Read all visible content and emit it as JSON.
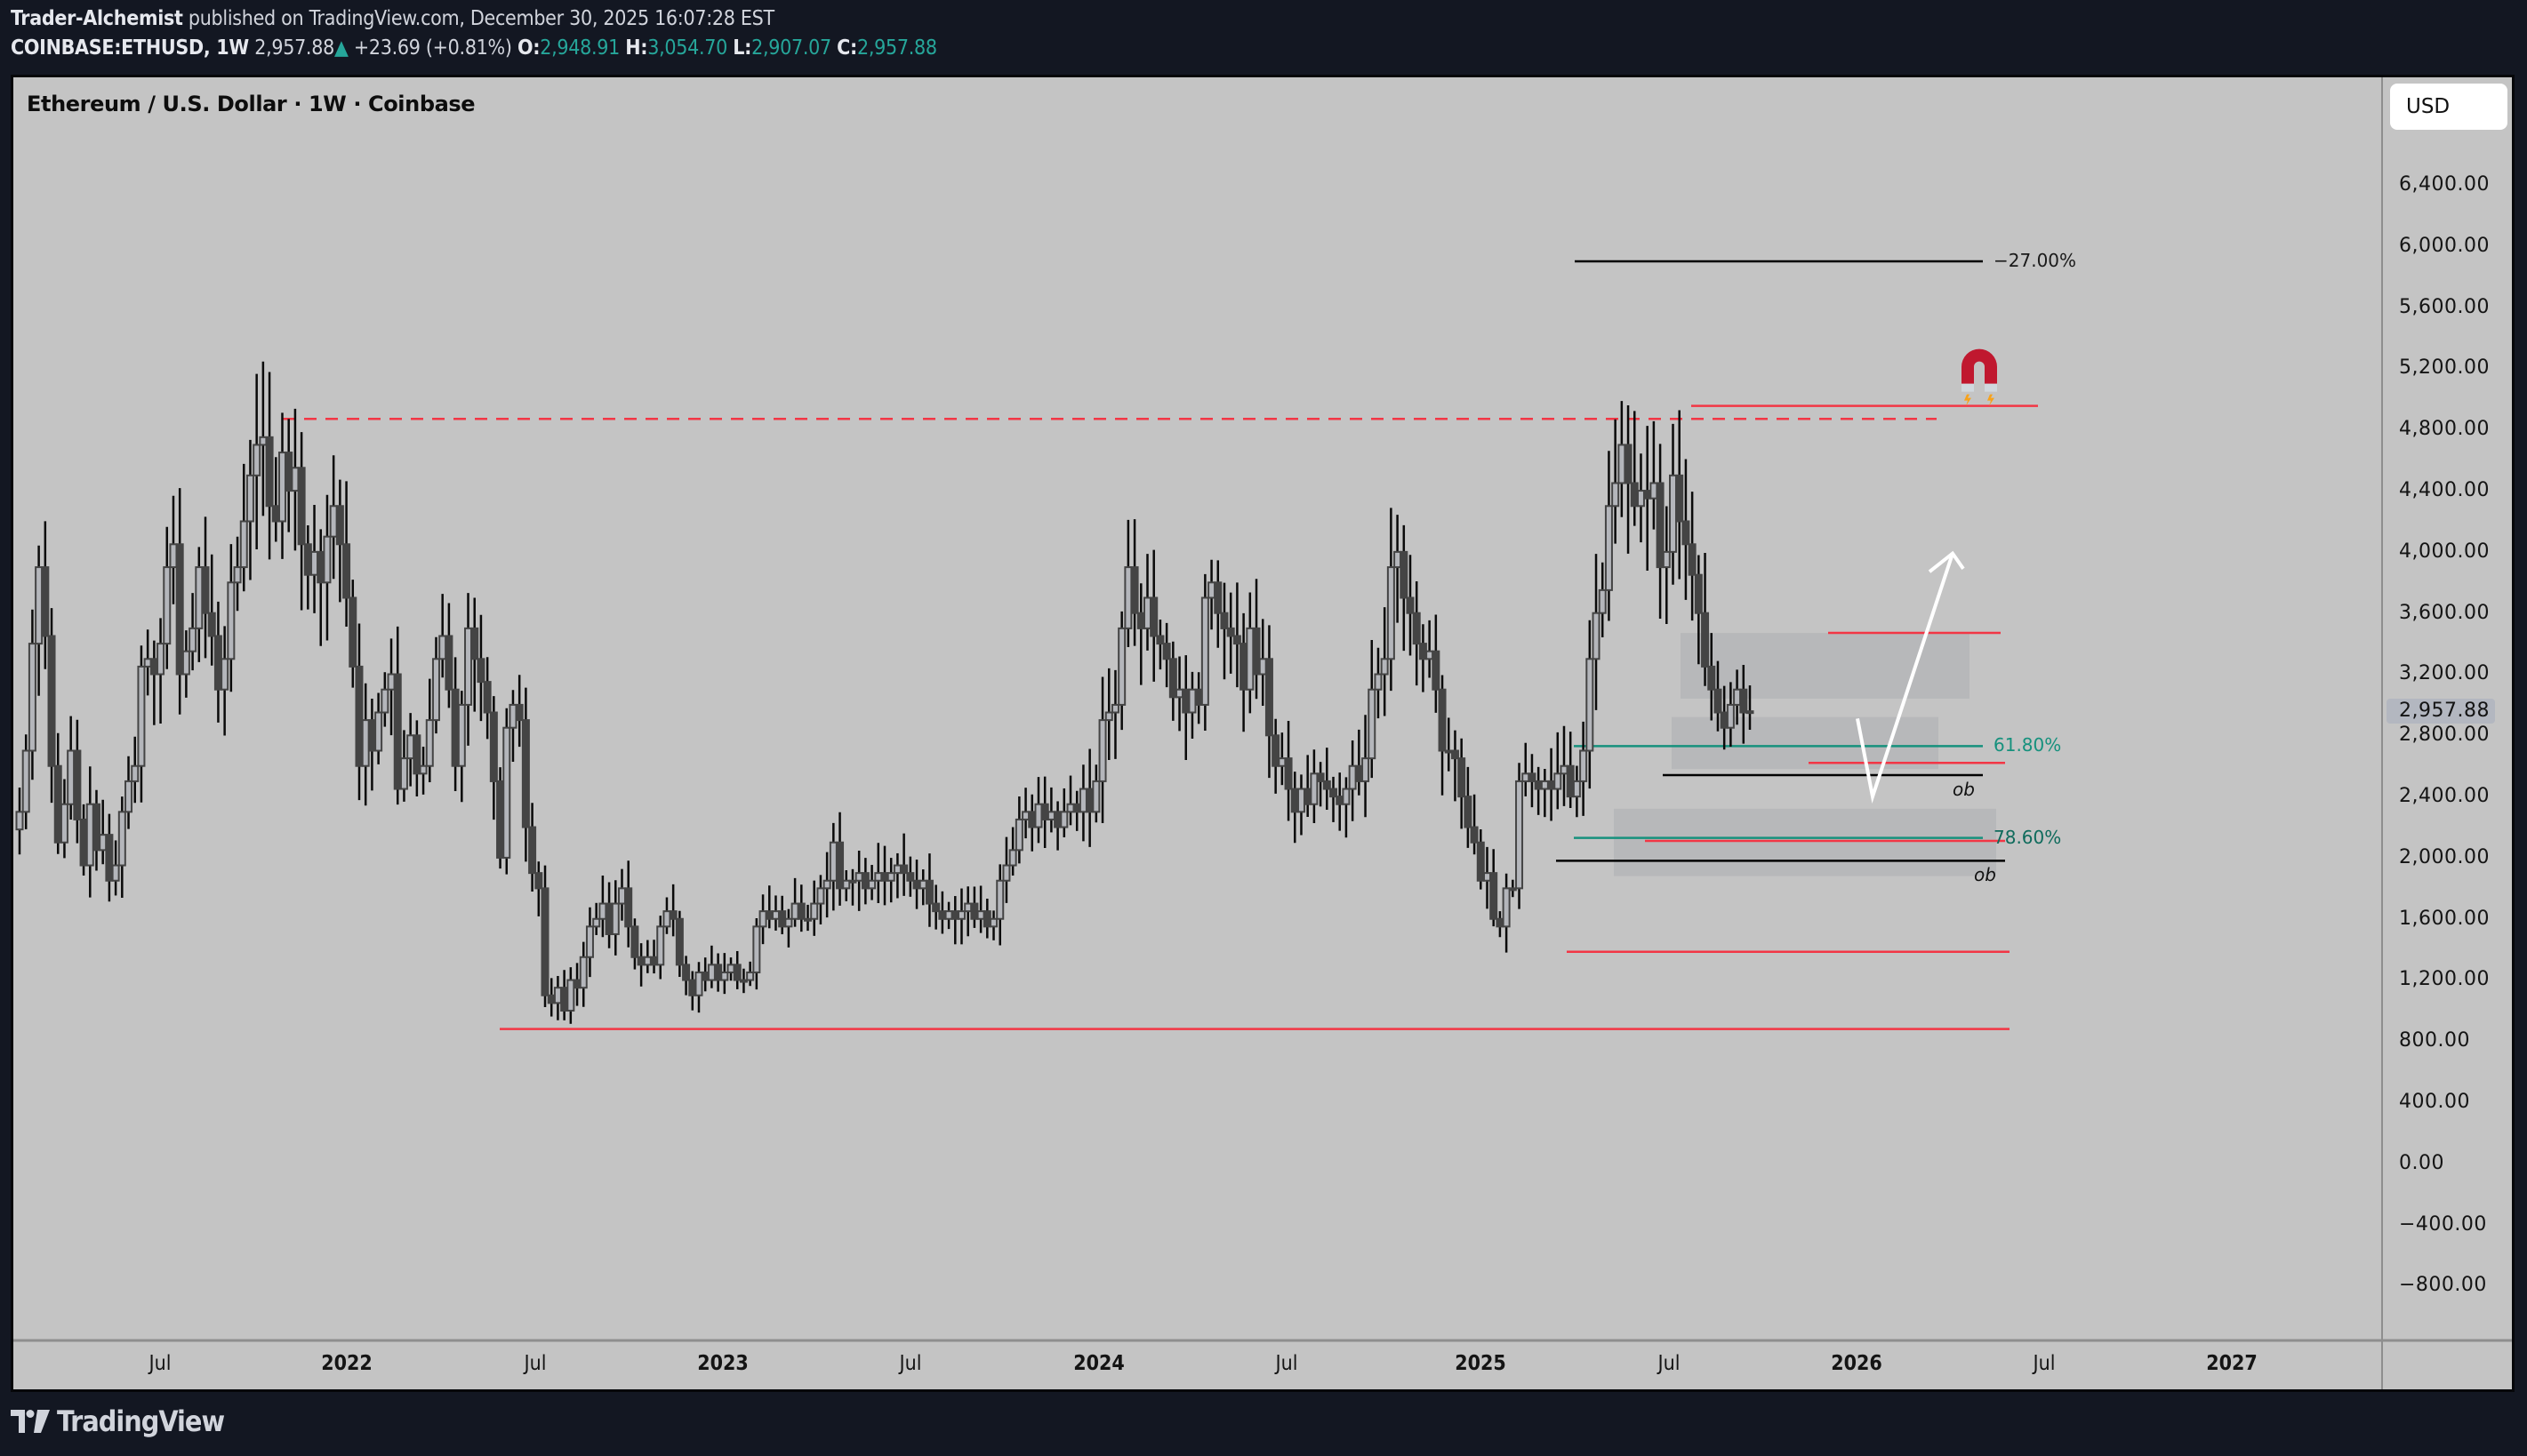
{
  "header": {
    "author": "Trader-Alchemist",
    "published_text": "published on TradingView.com, December 30, 2025 16:07:28 EST",
    "symbol": "COINBASE:ETHUSD, 1W",
    "last": "2,957.88",
    "change": "+23.69 (+0.81%)",
    "o_label": "O:",
    "o": "2,948.91",
    "h_label": "H:",
    "h": "3,054.70",
    "l_label": "L:",
    "l": "2,907.07",
    "c_label": "C:",
    "c": "2,957.88"
  },
  "legend": {
    "title": "Ethereum / U.S. Dollar · 1W · Coinbase"
  },
  "price_axis": {
    "currency": "USD",
    "ticks": [
      "6,400.00",
      "6,000.00",
      "5,600.00",
      "5,200.00",
      "4,800.00",
      "4,400.00",
      "4,000.00",
      "3,600.00",
      "3,200.00",
      "2,800.00",
      "2,400.00",
      "2,000.00",
      "1,600.00",
      "1,200.00",
      "800.00",
      "400.00",
      "0.00",
      "−400.00",
      "−800.00"
    ],
    "last_price_label": "2,957.88"
  },
  "time_axis": {
    "ticks": [
      {
        "label": "Jul",
        "bold": false
      },
      {
        "label": "2022",
        "bold": true
      },
      {
        "label": "Jul",
        "bold": false
      },
      {
        "label": "2023",
        "bold": true
      },
      {
        "label": "Jul",
        "bold": false
      },
      {
        "label": "2024",
        "bold": true
      },
      {
        "label": "Jul",
        "bold": false
      },
      {
        "label": "2025",
        "bold": true
      },
      {
        "label": "Jul",
        "bold": false
      },
      {
        "label": "2026",
        "bold": true
      },
      {
        "label": "Jul",
        "bold": false
      },
      {
        "label": "2027",
        "bold": true
      }
    ]
  },
  "annotations": {
    "projection_label": "−27.00%",
    "fib_618": "61.80%",
    "fib_786": "78.60%",
    "ob_label_1": "ob",
    "ob_label_2": "ob",
    "magnet_icon": "magnet"
  },
  "colors": {
    "background": "#131722",
    "chart_bg": "#c4c4c4",
    "up_fill": "#b4b6bb",
    "down_fill": "#444444",
    "candle_border": "#444444",
    "wick": "#0a0a0a",
    "red_line": "#f23645",
    "fib_green": "#16917d",
    "zone": "#b5b6b8"
  },
  "branding": {
    "logo_text": "TradingView"
  },
  "chart_data": {
    "type": "candlestick",
    "title": "Ethereum / U.S. Dollar · 1W · Coinbase",
    "xlabel": "",
    "ylabel": "USD",
    "ylim": [
      -1000,
      6800
    ],
    "grid": false,
    "x_start": "2021-04",
    "interval": "1W",
    "levels": [
      {
        "name": "2021 ATH (dashed)",
        "price": 4870,
        "style": "dashed",
        "color": "#f23645"
      },
      {
        "name": "2025 ATH",
        "price": 4955,
        "color": "#f23645"
      },
      {
        "name": "Projection -27%",
        "price": 5900,
        "color": "#000000"
      },
      {
        "name": "Range high",
        "price": 3470,
        "color": "#f23645"
      },
      {
        "name": "Fib 61.8%",
        "price": 2730,
        "color": "#16917d"
      },
      {
        "name": "Range low",
        "price": 2620,
        "color": "#f23645"
      },
      {
        "name": "OB top 1",
        "price": 2540,
        "color": "#000000"
      },
      {
        "name": "Fib 78.6%",
        "price": 2130,
        "color": "#16917d"
      },
      {
        "name": "Swing low 2",
        "price": 2110,
        "color": "#f23645"
      },
      {
        "name": "OB top 2",
        "price": 1980,
        "color": "#000000"
      },
      {
        "name": "2025 low",
        "price": 1385,
        "color": "#f23645"
      },
      {
        "name": "2022 low",
        "price": 880,
        "color": "#f23645"
      }
    ],
    "ohlc_weekly_close_approx": [
      2300,
      2700,
      3400,
      3900,
      3450,
      2600,
      2100,
      2350,
      2700,
      2250,
      1950,
      2350,
      2050,
      2150,
      1850,
      1950,
      2300,
      2500,
      2600,
      3250,
      3300,
      3200,
      3400,
      3900,
      4050,
      3200,
      3350,
      3500,
      3900,
      3600,
      3450,
      3100,
      3300,
      3800,
      3900,
      4200,
      4500,
      4700,
      4750,
      4300,
      4200,
      4650,
      4400,
      4550,
      4050,
      3850,
      4000,
      3800,
      4100,
      4300,
      4050,
      3700,
      3250,
      2600,
      2900,
      2700,
      2950,
      3100,
      3200,
      2450,
      2650,
      2800,
      2550,
      2600,
      2900,
      3300,
      3450,
      3100,
      2600,
      3000,
      3500,
      3300,
      3150,
      2950,
      2500,
      2000,
      2850,
      3000,
      2900,
      2200,
      1900,
      1800,
      1100,
      1050,
      1150,
      1000,
      1200,
      1150,
      1350,
      1550,
      1600,
      1700,
      1500,
      1700,
      1800,
      1550,
      1350,
      1300,
      1350,
      1300,
      1550,
      1650,
      1600,
      1300,
      1200,
      1100,
      1250,
      1200,
      1300,
      1200,
      1250,
      1300,
      1200,
      1200,
      1250,
      1550,
      1650,
      1600,
      1650,
      1550,
      1600,
      1700,
      1600,
      1600,
      1700,
      1800,
      1850,
      2100,
      1800,
      1850,
      1850,
      1900,
      1800,
      1850,
      1900,
      1850,
      1900,
      1950,
      1900,
      1850,
      1800,
      1850,
      1700,
      1650,
      1600,
      1650,
      1600,
      1650,
      1700,
      1600,
      1650,
      1550,
      1600,
      1850,
      1950,
      2050,
      2250,
      2300,
      2200,
      2350,
      2250,
      2300,
      2200,
      2300,
      2350,
      2300,
      2450,
      2300,
      2500,
      2900,
      2950,
      3000,
      3500,
      3900,
      3600,
      3500,
      3700,
      3450,
      3400,
      3300,
      3050,
      3100,
      2950,
      3100,
      3000,
      3700,
      3800,
      3600,
      3500,
      3450,
      3400,
      3100,
      3500,
      3200,
      3300,
      2800,
      2600,
      2650,
      2450,
      2300,
      2450,
      2350,
      2550,
      2500,
      2450,
      2400,
      2350,
      2450,
      2600,
      2500,
      2650,
      3100,
      3200,
      3300,
      3900,
      4000,
      3700,
      3600,
      3400,
      3300,
      3350,
      3100,
      2700,
      2700,
      2650,
      2400,
      2200,
      2100,
      1850,
      1900,
      1600,
      1550,
      1800,
      1800,
      2500,
      2550,
      2500,
      2450,
      2500,
      2450,
      2550,
      2600,
      2400,
      2500,
      2700,
      3300,
      3600,
      3750,
      4300,
      4450,
      4700,
      4450,
      4300,
      4400,
      4350,
      4450,
      3900,
      4000,
      4500,
      4200,
      4050,
      3850,
      3600,
      3250,
      3100,
      2950,
      2850,
      3000,
      3100,
      2950,
      2957.88
    ]
  }
}
